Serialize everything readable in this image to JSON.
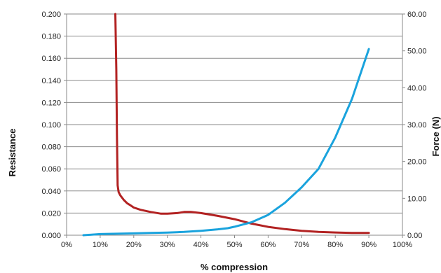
{
  "chart_data": {
    "type": "line",
    "xlabel": "% compression",
    "ylabel_left": "Resistance",
    "ylabel_right": "Force (N)",
    "x_range": [
      0,
      100
    ],
    "x_ticks": [
      "0%",
      "10%",
      "20%",
      "30%",
      "40%",
      "50%",
      "60%",
      "70%",
      "80%",
      "90%",
      "100%"
    ],
    "y_left_range": [
      0,
      0.2
    ],
    "y_left_ticks": [
      "0.000",
      "0.020",
      "0.040",
      "0.060",
      "0.080",
      "0.100",
      "0.120",
      "0.140",
      "0.160",
      "0.180",
      "0.200"
    ],
    "y_right_range": [
      0,
      60
    ],
    "y_right_ticks": [
      "0.00",
      "10.00",
      "20.00",
      "30.00",
      "40.00",
      "50.00",
      "60.00"
    ],
    "grid": true,
    "series": [
      {
        "axis": "left",
        "color": "#b22222",
        "x": [
          14.5,
          14.8,
          15,
          15.2,
          15.5,
          16,
          17,
          18,
          19,
          20,
          22,
          25,
          28,
          30,
          33,
          35,
          37,
          40,
          45,
          50,
          55,
          60,
          65,
          70,
          75,
          80,
          85,
          90
        ],
        "y": [
          0.2,
          0.15,
          0.09,
          0.045,
          0.039,
          0.036,
          0.032,
          0.029,
          0.027,
          0.025,
          0.023,
          0.021,
          0.0195,
          0.0195,
          0.02,
          0.021,
          0.021,
          0.02,
          0.0175,
          0.0145,
          0.0105,
          0.0075,
          0.0055,
          0.004,
          0.003,
          0.0025,
          0.002,
          0.002
        ]
      },
      {
        "axis": "right",
        "color": "#1aa3dd",
        "x": [
          5,
          10,
          15,
          20,
          25,
          30,
          35,
          40,
          45,
          48,
          50,
          55,
          60,
          65,
          70,
          75,
          80,
          85,
          90
        ],
        "y": [
          0,
          0.3,
          0.4,
          0.5,
          0.6,
          0.7,
          0.9,
          1.2,
          1.6,
          1.9,
          2.3,
          3.5,
          5.5,
          8.8,
          13.0,
          18.0,
          26.5,
          37.0,
          50.5
        ]
      }
    ]
  }
}
